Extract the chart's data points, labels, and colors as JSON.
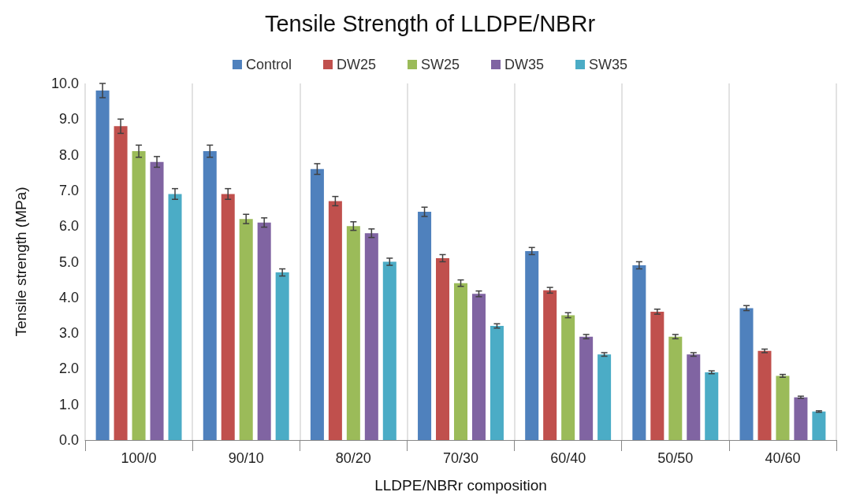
{
  "chart_data": {
    "type": "bar",
    "title": "Tensile Strength of LLDPE/NBRr",
    "xlabel": "LLDPE/NBRr composition",
    "ylabel": "Tensile strength (MPa)",
    "categories": [
      "100/0",
      "90/10",
      "80/20",
      "70/30",
      "60/40",
      "50/50",
      "40/60"
    ],
    "series": [
      {
        "name": "Control",
        "color": "#4f81bd",
        "values": [
          9.8,
          8.1,
          7.6,
          6.4,
          5.3,
          4.9,
          3.7
        ],
        "errors": [
          0.2,
          0.17,
          0.15,
          0.13,
          0.1,
          0.1,
          0.07
        ]
      },
      {
        "name": "DW25",
        "color": "#c0504d",
        "values": [
          8.8,
          6.9,
          6.7,
          5.1,
          4.2,
          3.6,
          2.5
        ],
        "errors": [
          0.2,
          0.15,
          0.13,
          0.1,
          0.08,
          0.07,
          0.05
        ]
      },
      {
        "name": "SW25",
        "color": "#9bbb59",
        "values": [
          8.1,
          6.2,
          6.0,
          4.4,
          3.5,
          2.9,
          1.8
        ],
        "errors": [
          0.17,
          0.13,
          0.12,
          0.09,
          0.07,
          0.06,
          0.04
        ]
      },
      {
        "name": "DW35",
        "color": "#8064a2",
        "values": [
          7.8,
          6.1,
          5.8,
          4.1,
          2.9,
          2.4,
          1.2
        ],
        "errors": [
          0.15,
          0.13,
          0.12,
          0.08,
          0.06,
          0.05,
          0.03
        ]
      },
      {
        "name": "SW35",
        "color": "#4bacc6",
        "values": [
          6.9,
          4.7,
          5.0,
          3.2,
          2.4,
          1.9,
          0.8
        ],
        "errors": [
          0.15,
          0.1,
          0.1,
          0.06,
          0.05,
          0.04,
          0.02
        ]
      }
    ],
    "ylim": [
      0,
      10
    ],
    "yticks": [
      {
        "value": 0,
        "label": "0.0"
      },
      {
        "value": 1,
        "label": "1.0"
      },
      {
        "value": 2,
        "label": "2.0"
      },
      {
        "value": 3,
        "label": "3.0"
      },
      {
        "value": 4,
        "label": "4.0"
      },
      {
        "value": 5,
        "label": "5.0"
      },
      {
        "value": 6,
        "label": "6.0"
      },
      {
        "value": 7,
        "label": "7.0"
      },
      {
        "value": 8,
        "label": "8.0"
      },
      {
        "value": 9,
        "label": "9.0"
      },
      {
        "value": 10,
        "label": "10.0"
      }
    ],
    "grid": "x",
    "legend": "top"
  }
}
